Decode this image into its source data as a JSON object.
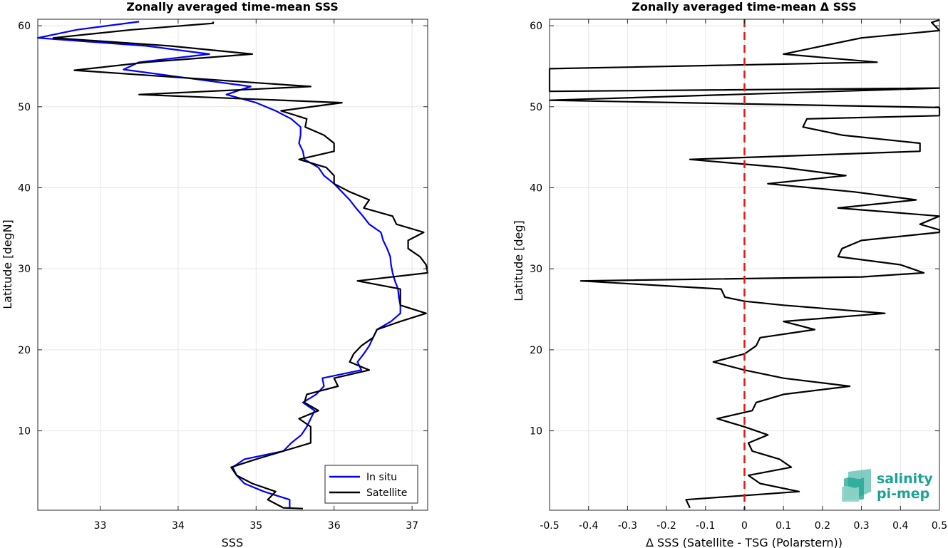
{
  "chart_data": [
    {
      "type": "line",
      "title": "Zonally averaged time-mean SSS",
      "xlabel": "SSS",
      "ylabel": "Latitude [degN]",
      "xlim": [
        32.2,
        37.2
      ],
      "ylim": [
        0.2,
        60.8
      ],
      "xticks": [
        33,
        34,
        35,
        36,
        37
      ],
      "yticks": [
        10,
        20,
        30,
        40,
        50,
        60
      ],
      "grid": true,
      "legend_position": "bottom-right",
      "series": [
        {
          "name": "In situ",
          "color": "#0000ff",
          "points": [
            [
              33.5,
              60.5
            ],
            [
              32.7,
              59.5
            ],
            [
              32.2,
              58.5
            ],
            [
              33.6,
              57.5
            ],
            [
              34.4,
              56.5
            ],
            [
              33.5,
              55.5
            ],
            [
              33.3,
              54.6
            ],
            [
              34.93,
              52.5
            ],
            [
              34.62,
              51.5
            ],
            [
              35.0,
              50.5
            ],
            [
              35.25,
              49.5
            ],
            [
              35.45,
              48.5
            ],
            [
              35.57,
              47.5
            ],
            [
              35.57,
              46.5
            ],
            [
              35.55,
              45.5
            ],
            [
              35.6,
              44.5
            ],
            [
              35.62,
              43.5
            ],
            [
              35.8,
              42.5
            ],
            [
              35.87,
              41.5
            ],
            [
              36.0,
              40.5
            ],
            [
              36.1,
              39.5
            ],
            [
              36.2,
              38.5
            ],
            [
              36.28,
              37.5
            ],
            [
              36.37,
              36.5
            ],
            [
              36.45,
              35.5
            ],
            [
              36.6,
              34.5
            ],
            [
              36.63,
              33.5
            ],
            [
              36.68,
              32.5
            ],
            [
              36.72,
              31.5
            ],
            [
              36.73,
              30.5
            ],
            [
              36.75,
              29.5
            ],
            [
              36.78,
              28.5
            ],
            [
              36.82,
              27.5
            ],
            [
              36.83,
              26.5
            ],
            [
              36.85,
              25.5
            ],
            [
              36.85,
              24.5
            ],
            [
              36.73,
              23.5
            ],
            [
              36.55,
              22.5
            ],
            [
              36.5,
              21.5
            ],
            [
              36.45,
              20.5
            ],
            [
              36.38,
              19.5
            ],
            [
              36.3,
              18.5
            ],
            [
              36.35,
              17.5
            ],
            [
              35.85,
              16.5
            ],
            [
              35.87,
              15.5
            ],
            [
              35.77,
              14.5
            ],
            [
              35.6,
              13.5
            ],
            [
              35.75,
              12.5
            ],
            [
              35.7,
              11.5
            ],
            [
              35.65,
              10.5
            ],
            [
              35.58,
              9.5
            ],
            [
              35.45,
              8.5
            ],
            [
              35.35,
              7.5
            ],
            [
              34.85,
              6.5
            ],
            [
              34.7,
              5.5
            ],
            [
              34.75,
              4.5
            ],
            [
              34.85,
              3.5
            ],
            [
              35.1,
              2.5
            ],
            [
              35.43,
              1.5
            ],
            [
              35.43,
              0.5
            ]
          ]
        },
        {
          "name": "Satellite",
          "color": "#000000",
          "points": [
            [
              34.45,
              60.5
            ],
            [
              34.45,
              60.3
            ],
            [
              33.4,
              59.5
            ],
            [
              32.4,
              58.5
            ],
            [
              33.9,
              57.5
            ],
            [
              34.95,
              56.5
            ],
            [
              33.6,
              55.5
            ],
            [
              32.67,
              54.5
            ],
            [
              35.7,
              52.5
            ],
            [
              33.5,
              51.5
            ],
            [
              36.1,
              50.5
            ],
            [
              35.32,
              49.5
            ],
            [
              35.65,
              48.5
            ],
            [
              35.63,
              47.5
            ],
            [
              35.87,
              46.5
            ],
            [
              36.0,
              45.5
            ],
            [
              36.0,
              44.5
            ],
            [
              35.55,
              43.5
            ],
            [
              35.9,
              42.5
            ],
            [
              36.0,
              41.5
            ],
            [
              36.0,
              40.5
            ],
            [
              36.2,
              39.5
            ],
            [
              36.45,
              38.5
            ],
            [
              36.38,
              37.5
            ],
            [
              36.75,
              36.5
            ],
            [
              36.8,
              35.5
            ],
            [
              37.15,
              34.5
            ],
            [
              36.95,
              33.5
            ],
            [
              36.95,
              32.5
            ],
            [
              37.1,
              31.5
            ],
            [
              37.18,
              30.5
            ],
            [
              37.2,
              29.5
            ],
            [
              36.3,
              28.5
            ],
            [
              36.85,
              27.5
            ],
            [
              36.85,
              26.5
            ],
            [
              36.85,
              25.5
            ],
            [
              37.18,
              24.5
            ],
            [
              36.85,
              23.5
            ],
            [
              36.55,
              22.5
            ],
            [
              36.5,
              21.5
            ],
            [
              36.35,
              20.5
            ],
            [
              36.25,
              19.5
            ],
            [
              36.2,
              18.5
            ],
            [
              36.45,
              17.5
            ],
            [
              36.0,
              16.5
            ],
            [
              36.05,
              15.5
            ],
            [
              35.65,
              14.5
            ],
            [
              35.62,
              13.5
            ],
            [
              35.8,
              12.5
            ],
            [
              35.55,
              11.5
            ],
            [
              35.7,
              10.5
            ],
            [
              35.7,
              9.5
            ],
            [
              35.7,
              8.5
            ],
            [
              35.35,
              7.5
            ],
            [
              35.0,
              6.5
            ],
            [
              34.68,
              5.5
            ],
            [
              34.75,
              4.5
            ],
            [
              34.95,
              3.5
            ],
            [
              35.25,
              2.5
            ],
            [
              35.15,
              1.5
            ],
            [
              35.35,
              0.5
            ],
            [
              35.6,
              0.4
            ]
          ]
        }
      ]
    },
    {
      "type": "line",
      "title": "Zonally averaged time-mean Δ SSS",
      "xlabel": "Δ SSS (Satellite - TSG (Polarstern))",
      "ylabel": "Latitude [deg]",
      "xlim": [
        -0.5,
        0.5
      ],
      "ylim": [
        0.2,
        60.8
      ],
      "xticks": [
        -0.5,
        -0.4,
        -0.3,
        -0.2,
        -0.1,
        0,
        0.1,
        0.2,
        0.3,
        0.4,
        0.5
      ],
      "xtick_labels": [
        "-0.5",
        "-0.4",
        "-0.3",
        "-0.2",
        "-0.1",
        "0",
        "0.1",
        "0.2",
        "0.3",
        "0.4",
        "0.5"
      ],
      "yticks": [
        10,
        20,
        30,
        40,
        50,
        60
      ],
      "grid": true,
      "reference_line": {
        "x": 0,
        "style": "dashed",
        "color": "#e0201b"
      },
      "series": [
        {
          "color": "#000000",
          "points": [
            [
              0.5,
              60.7
            ],
            [
              0.48,
              60.4
            ],
            [
              0.5,
              59.4
            ],
            [
              0.3,
              58.5
            ],
            [
              0.2,
              57.5
            ],
            [
              0.1,
              56.5
            ],
            [
              0.34,
              55.5
            ],
            [
              -0.5,
              54.7
            ],
            [
              -0.5,
              51.9
            ],
            [
              0.5,
              52.3
            ],
            [
              -0.5,
              50.8
            ],
            [
              0.5,
              49.9
            ],
            [
              0.5,
              48.9
            ],
            [
              0.16,
              48.5
            ],
            [
              0.15,
              47.5
            ],
            [
              0.25,
              46.5
            ],
            [
              0.45,
              45.5
            ],
            [
              0.45,
              44.5
            ],
            [
              -0.14,
              43.5
            ],
            [
              0.1,
              42.5
            ],
            [
              0.26,
              41.5
            ],
            [
              0.06,
              40.5
            ],
            [
              0.28,
              39.5
            ],
            [
              0.44,
              38.5
            ],
            [
              0.24,
              37.5
            ],
            [
              0.5,
              36.5
            ],
            [
              0.45,
              35.5
            ],
            [
              0.5,
              34.8
            ],
            [
              0.5,
              34.5
            ],
            [
              0.3,
              33.5
            ],
            [
              0.25,
              32.5
            ],
            [
              0.24,
              31.5
            ],
            [
              0.4,
              30.5
            ],
            [
              0.46,
              29.5
            ],
            [
              0.3,
              29.0
            ],
            [
              -0.42,
              28.5
            ],
            [
              -0.06,
              27.5
            ],
            [
              -0.05,
              26.5
            ],
            [
              0.0,
              26.0
            ],
            [
              0.1,
              25.5
            ],
            [
              0.36,
              24.5
            ],
            [
              0.1,
              23.5
            ],
            [
              0.18,
              22.5
            ],
            [
              0.04,
              21.5
            ],
            [
              0.03,
              20.5
            ],
            [
              0.0,
              19.5
            ],
            [
              -0.08,
              18.5
            ],
            [
              0.0,
              17.5
            ],
            [
              0.1,
              16.5
            ],
            [
              0.27,
              15.5
            ],
            [
              0.1,
              14.5
            ],
            [
              0.03,
              13.5
            ],
            [
              0.02,
              12.5
            ],
            [
              -0.07,
              11.5
            ],
            [
              0.0,
              10.5
            ],
            [
              0.06,
              9.5
            ],
            [
              0.01,
              8.5
            ],
            [
              0.02,
              7.5
            ],
            [
              0.09,
              6.5
            ],
            [
              0.12,
              5.5
            ],
            [
              0.01,
              4.5
            ],
            [
              0.04,
              3.5
            ],
            [
              0.14,
              2.5
            ],
            [
              -0.15,
              1.5
            ],
            [
              -0.14,
              0.5
            ]
          ]
        }
      ]
    }
  ],
  "legend": {
    "items": [
      {
        "label": "In situ",
        "color": "#0000ff"
      },
      {
        "label": "Satellite",
        "color": "#000000"
      }
    ]
  },
  "logo": {
    "line1": "salinity",
    "line2": "pi-mep",
    "color": "#1aa392"
  }
}
